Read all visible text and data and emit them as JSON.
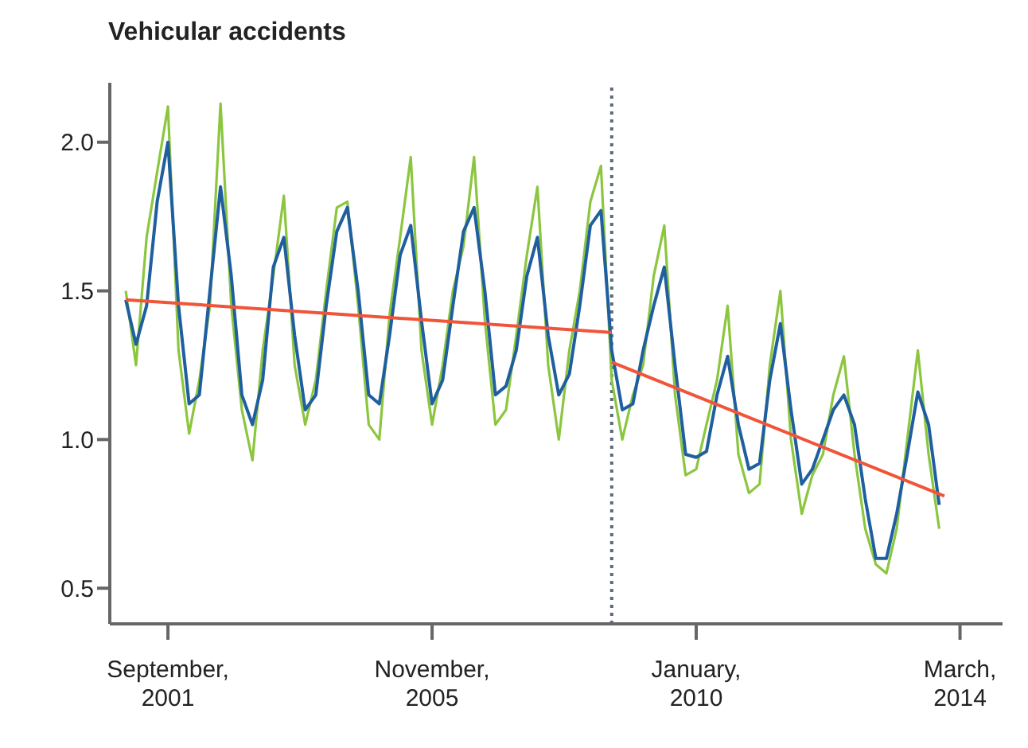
{
  "chart_data": {
    "type": "line",
    "title": "Vehicular accidents",
    "x": [
      "2001-01",
      "2001-03",
      "2001-05",
      "2001-07",
      "2001-09",
      "2001-11",
      "2002-01",
      "2002-03",
      "2002-05",
      "2002-07",
      "2002-09",
      "2002-11",
      "2003-01",
      "2003-03",
      "2003-05",
      "2003-07",
      "2003-09",
      "2003-11",
      "2004-01",
      "2004-03",
      "2004-05",
      "2004-07",
      "2004-09",
      "2004-11",
      "2005-01",
      "2005-03",
      "2005-05",
      "2005-07",
      "2005-09",
      "2005-11",
      "2006-01",
      "2006-03",
      "2006-05",
      "2006-07",
      "2006-09",
      "2006-11",
      "2007-01",
      "2007-03",
      "2007-05",
      "2007-07",
      "2007-09",
      "2007-11",
      "2008-01",
      "2008-03",
      "2008-05",
      "2008-07",
      "2008-09",
      "2008-11",
      "2009-01",
      "2009-03",
      "2009-05",
      "2009-07",
      "2009-09",
      "2009-11",
      "2010-01",
      "2010-03",
      "2010-05",
      "2010-07",
      "2010-09",
      "2010-11",
      "2011-01",
      "2011-03",
      "2011-05",
      "2011-07",
      "2011-09",
      "2011-11",
      "2012-01",
      "2012-03",
      "2012-05",
      "2012-07",
      "2012-09",
      "2012-11",
      "2013-01",
      "2013-03",
      "2013-05",
      "2013-07",
      "2013-09",
      "2013-11"
    ],
    "series": [
      {
        "color": "#8cc63f",
        "values": [
          1.5,
          1.25,
          1.68,
          1.9,
          2.12,
          1.3,
          1.02,
          1.2,
          1.45,
          2.13,
          1.45,
          1.1,
          0.93,
          1.3,
          1.55,
          1.82,
          1.25,
          1.05,
          1.2,
          1.5,
          1.78,
          1.8,
          1.45,
          1.05,
          1.0,
          1.42,
          1.68,
          1.95,
          1.3,
          1.05,
          1.25,
          1.5,
          1.65,
          1.95,
          1.4,
          1.05,
          1.1,
          1.35,
          1.62,
          1.85,
          1.25,
          1.0,
          1.3,
          1.5,
          1.8,
          1.92,
          1.2,
          1.0,
          1.15,
          1.25,
          1.55,
          1.72,
          1.15,
          0.88,
          0.9,
          1.05,
          1.2,
          1.45,
          0.95,
          0.82,
          0.85,
          1.25,
          1.5,
          1.0,
          0.75,
          0.88,
          0.95,
          1.15,
          1.28,
          0.95,
          0.7,
          0.58,
          0.55,
          0.7,
          1.0,
          1.3,
          0.95,
          0.7
        ]
      },
      {
        "color": "#1f5fa0",
        "values": [
          1.47,
          1.32,
          1.45,
          1.8,
          2.0,
          1.45,
          1.12,
          1.15,
          1.5,
          1.85,
          1.55,
          1.15,
          1.05,
          1.2,
          1.58,
          1.68,
          1.35,
          1.1,
          1.15,
          1.45,
          1.7,
          1.78,
          1.5,
          1.15,
          1.12,
          1.35,
          1.62,
          1.72,
          1.4,
          1.12,
          1.2,
          1.45,
          1.7,
          1.78,
          1.5,
          1.15,
          1.18,
          1.3,
          1.55,
          1.68,
          1.35,
          1.15,
          1.22,
          1.45,
          1.72,
          1.77,
          1.3,
          1.1,
          1.12,
          1.3,
          1.45,
          1.58,
          1.25,
          0.95,
          0.94,
          0.96,
          1.15,
          1.28,
          1.05,
          0.9,
          0.92,
          1.2,
          1.39,
          1.1,
          0.85,
          0.9,
          1.0,
          1.1,
          1.15,
          1.05,
          0.8,
          0.6,
          0.6,
          0.75,
          0.95,
          1.16,
          1.05,
          0.78
        ]
      },
      {
        "color": "#f0553a",
        "x": [
          "2001-01",
          "2008-09"
        ],
        "values": [
          1.47,
          1.36
        ]
      },
      {
        "color": "#f0553a",
        "x": [
          "2008-09",
          "2013-12"
        ],
        "values": [
          1.26,
          0.81
        ]
      }
    ],
    "xlim": [
      "2000-10",
      "2014-11"
    ],
    "xticks": [
      {
        "value": "2001-09",
        "label": "September, 2001"
      },
      {
        "value": "2005-11",
        "label": "November, 2005"
      },
      {
        "value": "2010-01",
        "label": "January, 2010"
      },
      {
        "value": "2014-03",
        "label": "March, 2014"
      }
    ],
    "ylim": [
      0.38,
      2.2
    ],
    "yticks": [
      0.5,
      {
        "value": 1,
        "label": "1.0"
      },
      1.5,
      {
        "value": 2,
        "label": "2.0"
      }
    ],
    "ref_lines": [
      {
        "axis": "x",
        "value": "2008-09",
        "color": "#5a6a7a",
        "line_style": "dotted"
      }
    ],
    "grid": false,
    "marker": "none",
    "line_style": "solid"
  }
}
